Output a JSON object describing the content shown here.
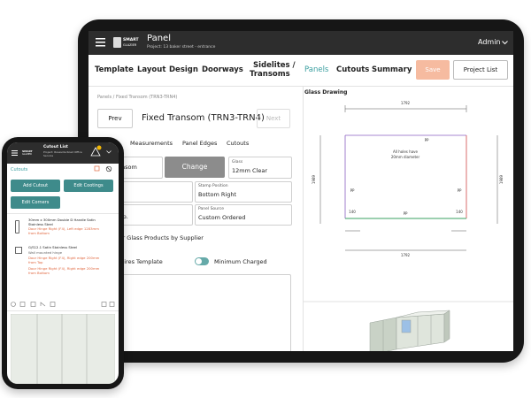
{
  "tablet": {
    "logo": [
      "SMART",
      "GLAZIER"
    ],
    "header": {
      "title": "Panel",
      "project": "Project: 13 baker street - entrance",
      "user": "Admin"
    },
    "nav": [
      "Template",
      "Layout",
      "Design",
      "Doorways",
      "Sidelites /",
      "Transoms",
      "Panels",
      "Cutouts",
      "Summary"
    ],
    "actions": {
      "save": "Save",
      "project_list": "Project List"
    },
    "breadcrumb": "Panels / Fixed Transom (TRN3-TRN4)",
    "prev": "Prev",
    "panel_title": "Fixed Transom (TRN3-TRN4)",
    "next": "Next",
    "tabs": [
      "Measurements",
      "Panel Edges",
      "Cutouts"
    ],
    "fields": {
      "name_value": "nsom",
      "change": "Change",
      "glass_label": "Glass",
      "glass_value": "12mm Clear",
      "stamp_label": "Stamp Position",
      "stamp_value": "Bottom Right",
      "supplier_value": "rp.",
      "source_label": "Panel Source",
      "source_value": "Custom Ordered",
      "filter_text": "ter Glass Products by Supplier",
      "template_text": "quires Template",
      "minimum_charged": "Minimum Charged"
    },
    "drawing": {
      "title": "Glass Drawing",
      "width": "1792",
      "height": "1989",
      "note": [
        "All holes have",
        "20mm diameter"
      ],
      "pp": "PP",
      "offset": "140"
    }
  },
  "phone": {
    "logo": [
      "SMART",
      "GLAZIER"
    ],
    "header": {
      "title": "Cutout List",
      "project": "Project: Roseville Road Office Service"
    },
    "section": "Cutouts",
    "buttons": [
      "Add Cutout",
      "Edit Cootings",
      "Edit Corners"
    ],
    "items": [
      {
        "name": "30mm x 300mm Double D Handle Satin Stainless Steel",
        "lines": [
          "Door Hinge Right (F4), Left edge 1283mm from Bottom"
        ]
      },
      {
        "name": "G/S12.1 Satin Stainless Steel",
        "sub": "Wall mounted hinge",
        "lines": [
          "Door Hinge Right (F4), Right edge 200mm from Top",
          "Door Hinge Right (F4), Right edge 200mm from Bottom"
        ]
      }
    ]
  }
}
